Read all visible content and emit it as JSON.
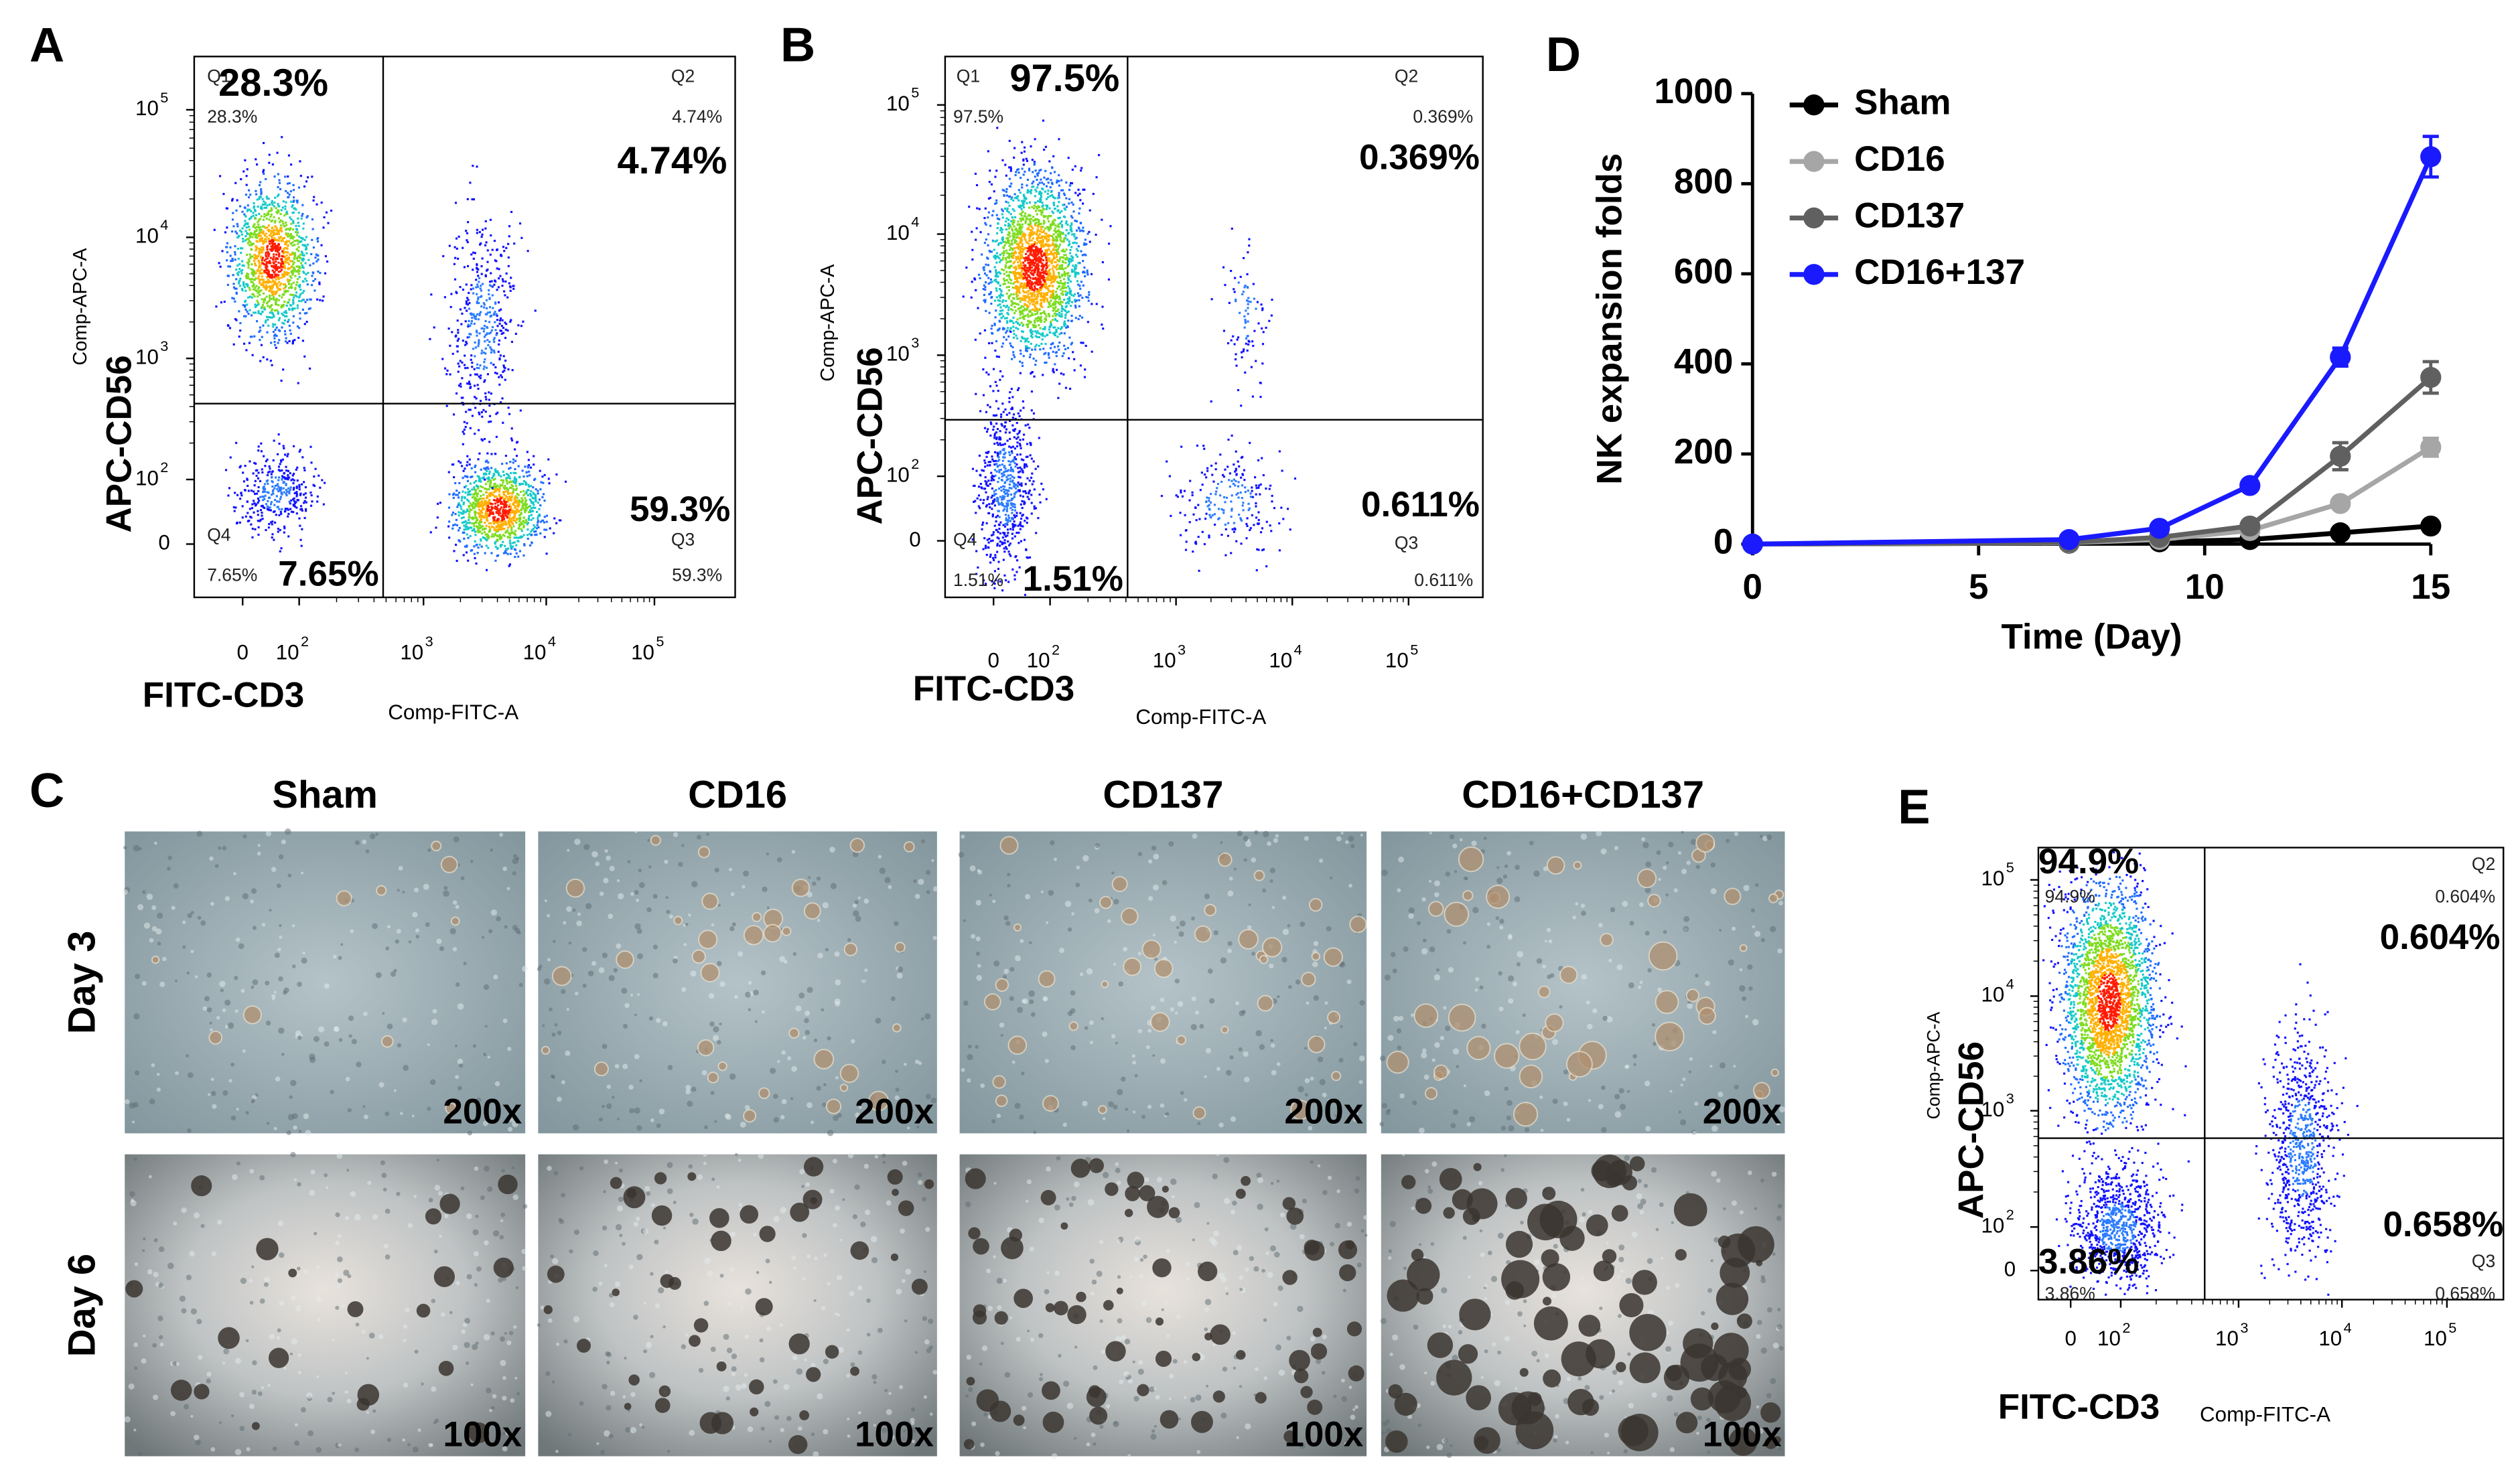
{
  "panel_labels": [
    "A",
    "B",
    "C",
    "D",
    "E"
  ],
  "flow": [
    {
      "panel": "A",
      "quadrants": [
        {
          "name": "Q1",
          "small": "28.3%",
          "big": "28.3%"
        },
        {
          "name": "Q2",
          "small": "4.74%",
          "big": "4.74%"
        },
        {
          "name": "Q4",
          "small": "7.65%",
          "big": "7.65%"
        },
        {
          "name": "Q3",
          "small": "59.3%",
          "big": "59.3%"
        }
      ],
      "y_small_label": "Comp-APC-A",
      "y_label": "APC-CD56",
      "x_label": "FITC-CD3",
      "x_small_label": "Comp-FITC-A",
      "yticks": [
        {
          "base": "10",
          "exp": "5"
        },
        {
          "base": "10",
          "exp": "4"
        },
        {
          "base": "10",
          "exp": "3"
        },
        {
          "base": "10",
          "exp": "2"
        },
        {
          "base": "0"
        }
      ],
      "xticks": [
        {
          "base": "0"
        },
        {
          "base": "10",
          "exp": "2"
        },
        {
          "base": "10",
          "exp": "3"
        },
        {
          "base": "10",
          "exp": "4"
        },
        {
          "base": "10",
          "exp": "5"
        }
      ]
    },
    {
      "panel": "B",
      "quadrants": [
        {
          "name": "Q1",
          "small": "97.5%",
          "big": "97.5%"
        },
        {
          "name": "Q2",
          "small": "0.369%",
          "big": "0.369%"
        },
        {
          "name": "Q4",
          "small": "1.51%",
          "big": "1.51%"
        },
        {
          "name": "Q3",
          "small": "0.611%",
          "big": "0.611%"
        }
      ],
      "y_small_label": "Comp-APC-A",
      "y_label": "APC-CD56",
      "x_label": "FITC-CD3",
      "x_small_label": "Comp-FITC-A",
      "yticks": [
        {
          "base": "10",
          "exp": "5"
        },
        {
          "base": "10",
          "exp": "4"
        },
        {
          "base": "10",
          "exp": "3"
        },
        {
          "base": "10",
          "exp": "2"
        },
        {
          "base": "0"
        }
      ],
      "xticks": [
        {
          "base": "0"
        },
        {
          "base": "10",
          "exp": "2"
        },
        {
          "base": "10",
          "exp": "3"
        },
        {
          "base": "10",
          "exp": "4"
        },
        {
          "base": "10",
          "exp": "5"
        }
      ]
    },
    {
      "panel": "E",
      "quadrants": [
        {
          "small": "94.9%",
          "big": "94.9%"
        },
        {
          "name": "Q2",
          "small": "0.604%",
          "big": "0.604%"
        },
        {
          "small": "3.86%",
          "big": "3.86%"
        },
        {
          "name": "Q3",
          "small": "0.658%",
          "big": "0.658%"
        }
      ],
      "y_small_label": "Comp-APC-A",
      "y_label": "APC-CD56",
      "x_label": "FITC-CD3",
      "x_small_label": "Comp-FITC-A",
      "yticks": [
        {
          "base": "10",
          "exp": "5"
        },
        {
          "base": "10",
          "exp": "4"
        },
        {
          "base": "10",
          "exp": "3"
        },
        {
          "base": "10",
          "exp": "2"
        },
        {
          "base": "0"
        }
      ],
      "xticks": [
        {
          "base": "0"
        },
        {
          "base": "10",
          "exp": "2"
        },
        {
          "base": "10",
          "exp": "3"
        },
        {
          "base": "10",
          "exp": "4"
        },
        {
          "base": "10",
          "exp": "5"
        }
      ]
    }
  ],
  "photos": {
    "columns": [
      "Sham",
      "CD16",
      "CD137",
      "CD16+CD137"
    ],
    "rows": [
      {
        "label": "Day 3",
        "magnification": "200x"
      },
      {
        "label": "Day 6",
        "magnification": "100x"
      }
    ]
  },
  "chart_data": {
    "type": "line",
    "x_label": "Time (Day)",
    "y_label": "NK expansion folds",
    "xlim": [
      0,
      15
    ],
    "xticks": [
      0,
      5,
      10,
      15
    ],
    "ylim": [
      0,
      1000
    ],
    "yticks": [
      0,
      200,
      400,
      600,
      800,
      1000
    ],
    "x": [
      0,
      7,
      9,
      11,
      13,
      15
    ],
    "series": [
      {
        "name": "Sham",
        "color": "#000000",
        "values": [
          0,
          2,
          5,
          10,
          25,
          40
        ],
        "errors": [
          0,
          1,
          1,
          2,
          4,
          5
        ]
      },
      {
        "name": "CD16",
        "color": "#a6a6a6",
        "values": [
          0,
          3,
          10,
          30,
          90,
          215
        ],
        "errors": [
          0,
          1,
          2,
          5,
          10,
          20
        ]
      },
      {
        "name": "CD137",
        "color": "#606060",
        "values": [
          0,
          4,
          15,
          40,
          195,
          370
        ],
        "errors": [
          0,
          1,
          3,
          6,
          30,
          35
        ]
      },
      {
        "name": "CD16+137",
        "color": "#1a1aff",
        "values": [
          0,
          10,
          35,
          130,
          415,
          860
        ],
        "errors": [
          0,
          2,
          5,
          8,
          20,
          45
        ]
      }
    ],
    "legend": "upper left"
  }
}
